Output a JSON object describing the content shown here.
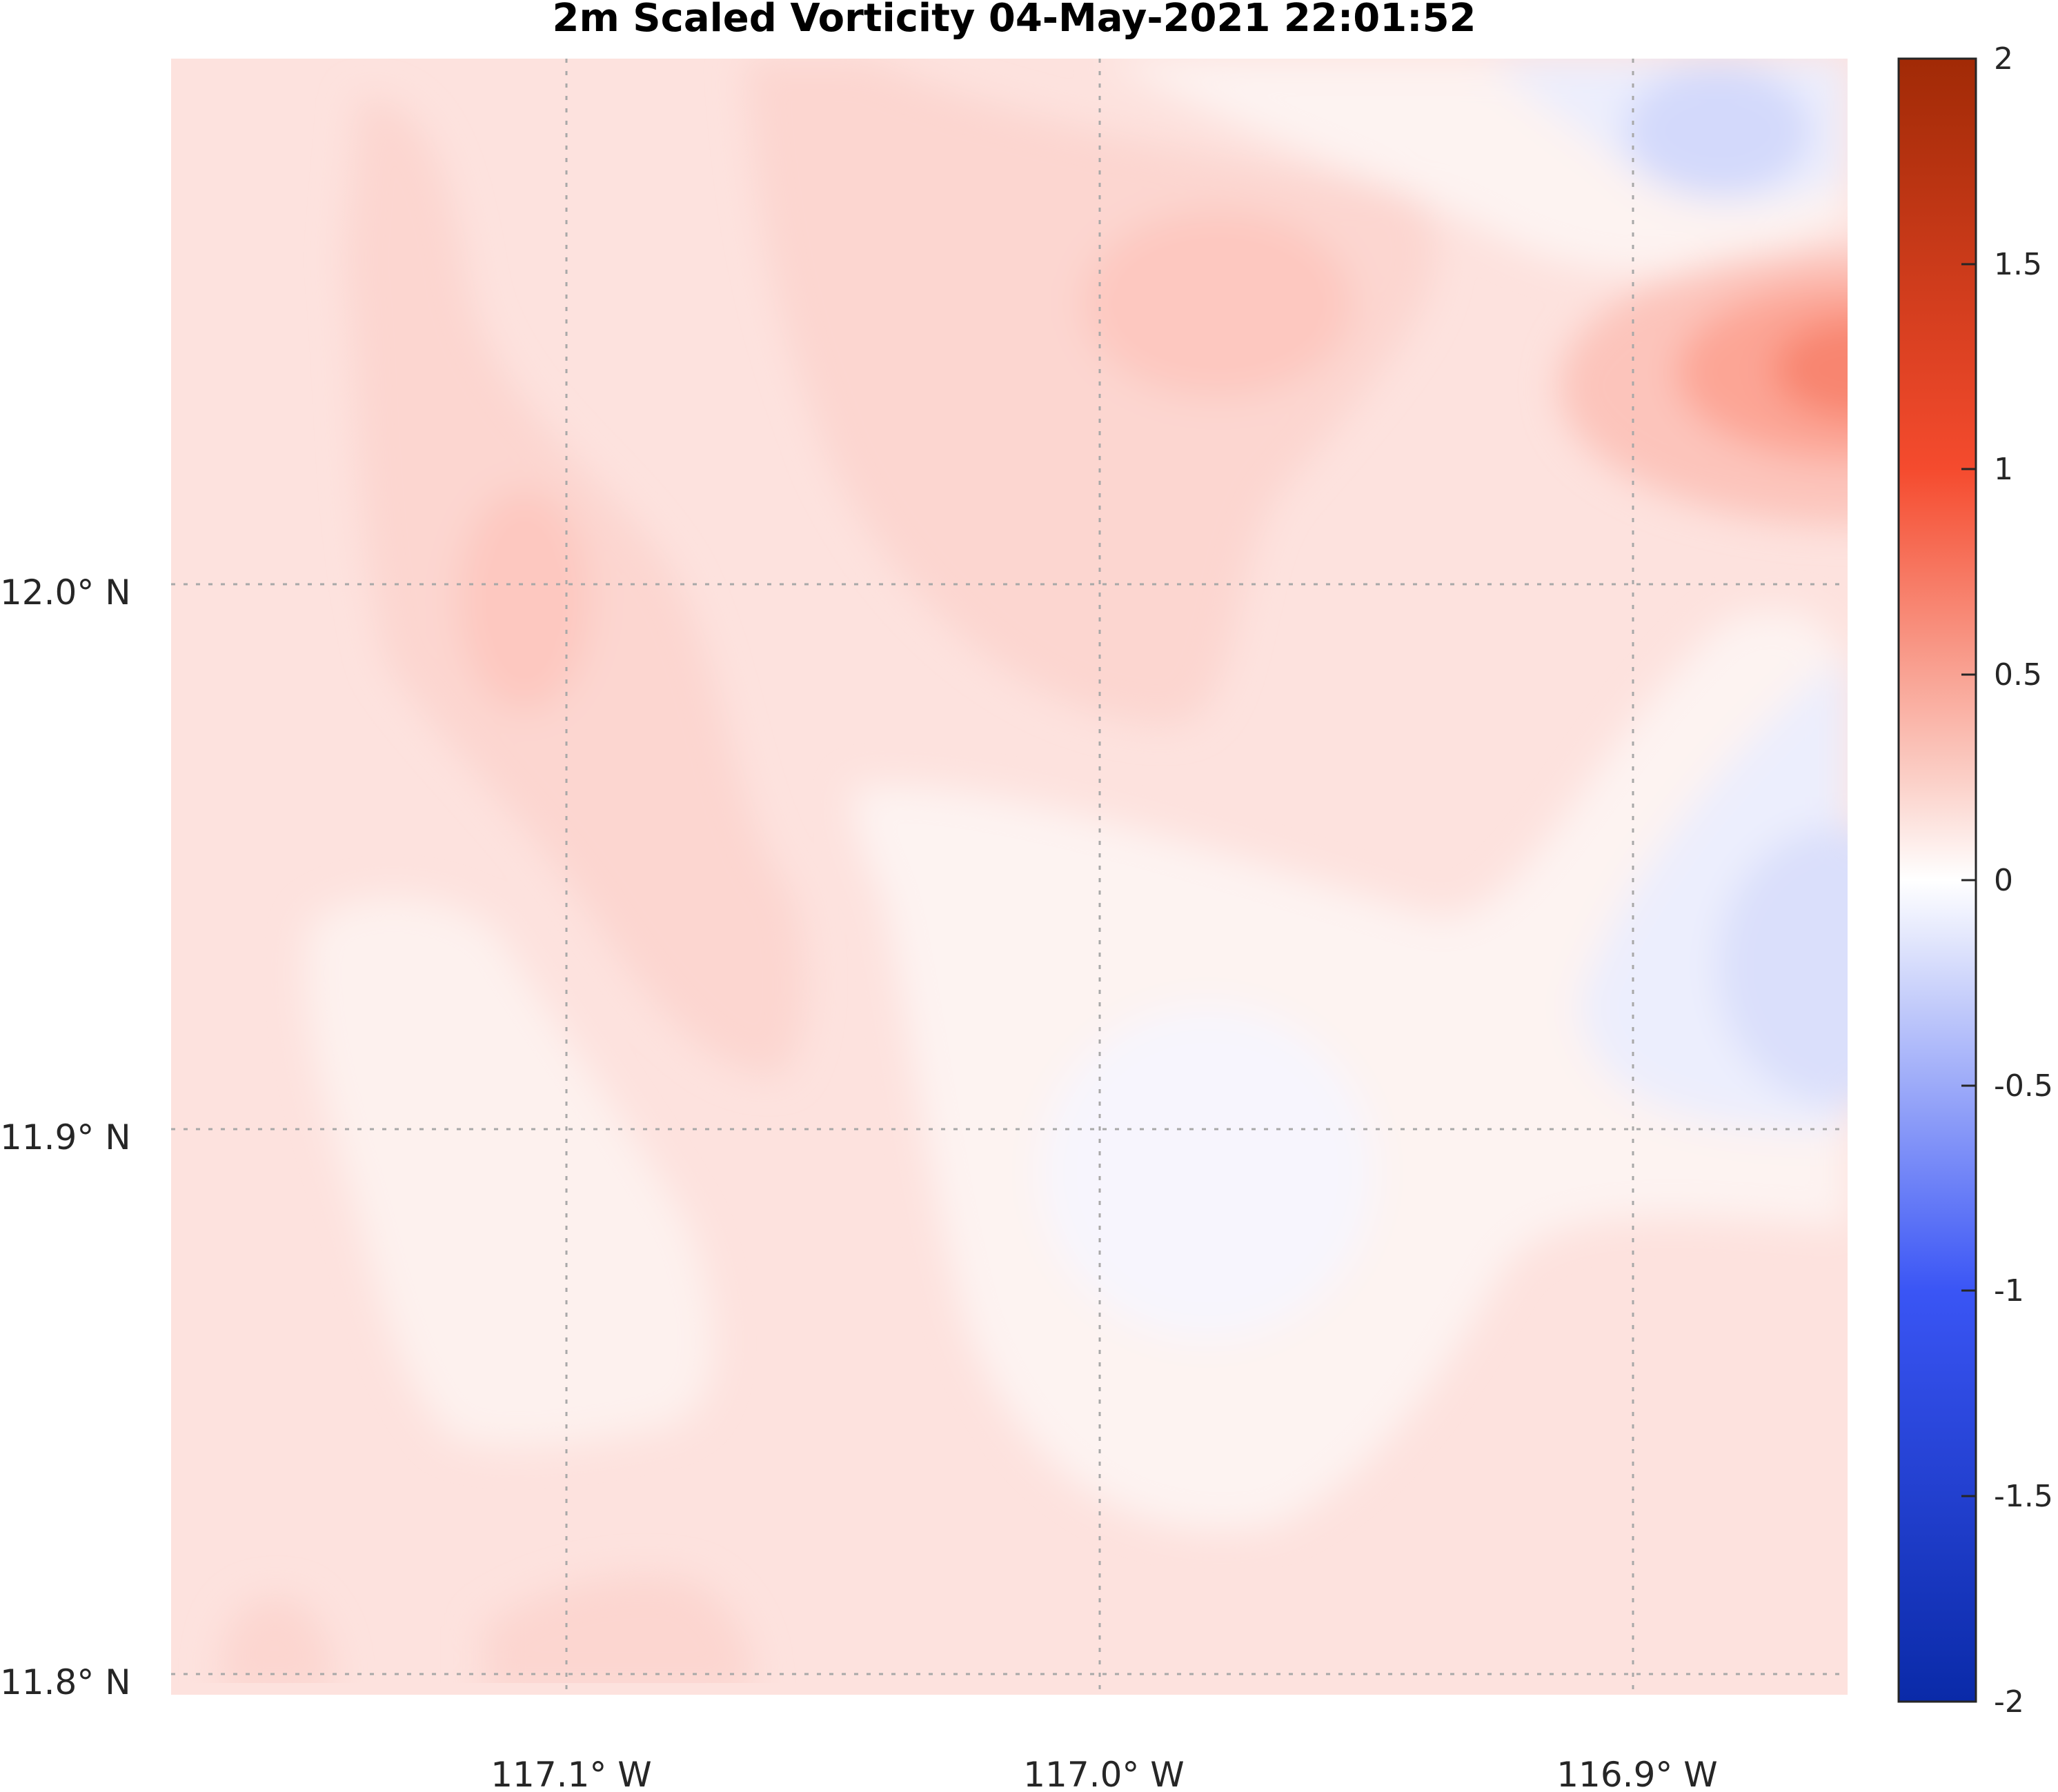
{
  "chart_data": {
    "type": "heatmap",
    "title": "2m Scaled Vorticity  04-May-2021 22:01:52",
    "x_ticks": [
      {
        "value": -117.1,
        "label": "117.1° W"
      },
      {
        "value": -117.0,
        "label": "117.0° W"
      },
      {
        "value": -116.9,
        "label": "116.9° W"
      }
    ],
    "y_ticks": [
      {
        "value": 12.0,
        "label": "12.0° N"
      },
      {
        "value": 11.9,
        "label": "11.9° N"
      },
      {
        "value": 11.8,
        "label": "11.8° N"
      }
    ],
    "xlim": [
      -117.174,
      -116.86
    ],
    "ylim": [
      11.798,
      12.098
    ],
    "grid": true,
    "colorbar": {
      "position": "right",
      "range": [
        -2,
        2
      ],
      "ticks": [
        {
          "value": 2,
          "label": "2"
        },
        {
          "value": 1.5,
          "label": "1.5"
        },
        {
          "value": 1,
          "label": "1"
        },
        {
          "value": 0.5,
          "label": "0.5"
        },
        {
          "value": 0,
          "label": "0"
        },
        {
          "value": -0.5,
          "label": "-0.5"
        },
        {
          "value": -1,
          "label": "-1"
        },
        {
          "value": -1.5,
          "label": "-1.5"
        },
        {
          "value": -2,
          "label": "-2"
        }
      ],
      "colors": {
        "max": "#a12a06",
        "mid_high": "#f54b2e",
        "zero": "#ffffff",
        "mid_low": "#3a55f5",
        "min": "#0a2aa8"
      }
    },
    "features": [
      {
        "name": "background positive vorticity",
        "lon": -117.02,
        "lat": 11.95,
        "value": 0.15
      },
      {
        "name": "strong positive maximum",
        "lon": -116.862,
        "lat": 12.04,
        "value": 0.95
      },
      {
        "name": "negative minimum north-east",
        "lon": -116.884,
        "lat": 12.08,
        "value": -0.25
      },
      {
        "name": "negative minimum east",
        "lon": -116.862,
        "lat": 11.93,
        "value": -0.28
      },
      {
        "name": "weak negative centre",
        "lon": -116.98,
        "lat": 11.89,
        "value": -0.03
      },
      {
        "name": "positive lobe north",
        "lon": -116.99,
        "lat": 12.05,
        "value": 0.28
      },
      {
        "name": "positive ridge west",
        "lon": -117.095,
        "lat": 11.99,
        "value": 0.28
      }
    ]
  }
}
